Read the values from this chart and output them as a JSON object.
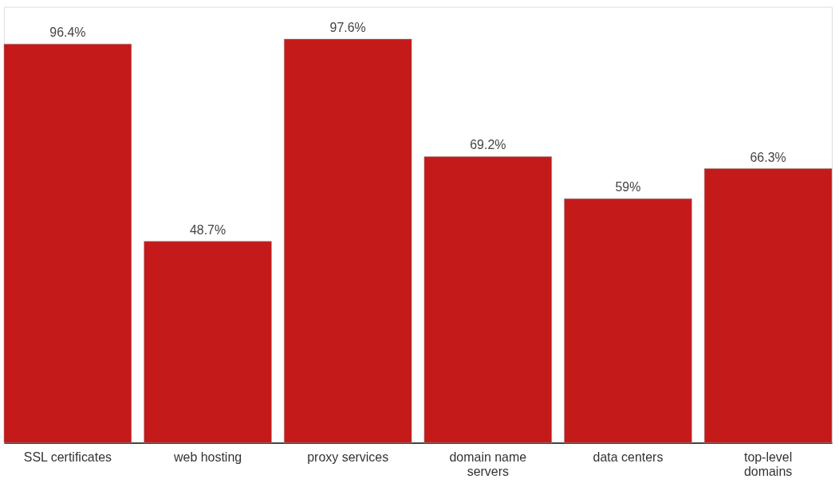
{
  "chart_data": {
    "type": "bar",
    "categories": [
      "SSL certificates",
      "web hosting",
      "proxy services",
      "domain name\nservers",
      "data centers",
      "top-level\ndomains"
    ],
    "values": [
      96.4,
      48.7,
      97.6,
      69.2,
      59,
      66.3
    ],
    "value_labels": [
      "96.4%",
      "48.7%",
      "97.6%",
      "69.2%",
      "59%",
      "66.3%"
    ],
    "color": "#c41a1a",
    "grid": false
  }
}
